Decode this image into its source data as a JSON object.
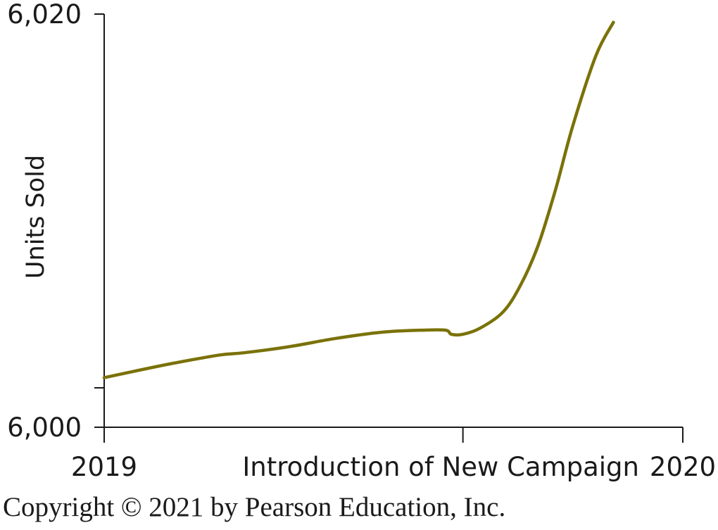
{
  "chart_data": {
    "type": "line",
    "title": "",
    "ylabel": "Units Sold",
    "xlabel": "",
    "y_tick_labels": [
      "6,020",
      "6,000"
    ],
    "x_tick_labels": [
      "2019",
      "Introduction of New Campaign",
      "2020"
    ],
    "x_ticks": [
      0,
      0.62,
      1
    ],
    "ylim": [
      6000,
      6020
    ],
    "xlim": [
      0,
      1
    ],
    "grid": false,
    "line_color": "#7a7209",
    "series": [
      {
        "x": [
          0,
          0.05,
          0.12,
          0.2,
          0.24,
          0.32,
          0.4,
          0.48,
          0.55,
          0.59,
          0.6,
          0.62,
          0.65,
          0.69,
          0.72,
          0.75,
          0.78,
          0.81,
          0.85,
          0.88
        ],
        "y": [
          6002.4,
          6002.7,
          6003.1,
          6003.5,
          6003.6,
          6003.9,
          6004.3,
          6004.6,
          6004.7,
          6004.7,
          6004.5,
          6004.5,
          6004.8,
          6005.6,
          6006.9,
          6008.8,
          6011.5,
          6014.6,
          6018,
          6019.6
        ]
      }
    ]
  },
  "footer": {
    "copyright": "Copyright © 2021 by Pearson Education, Inc."
  }
}
